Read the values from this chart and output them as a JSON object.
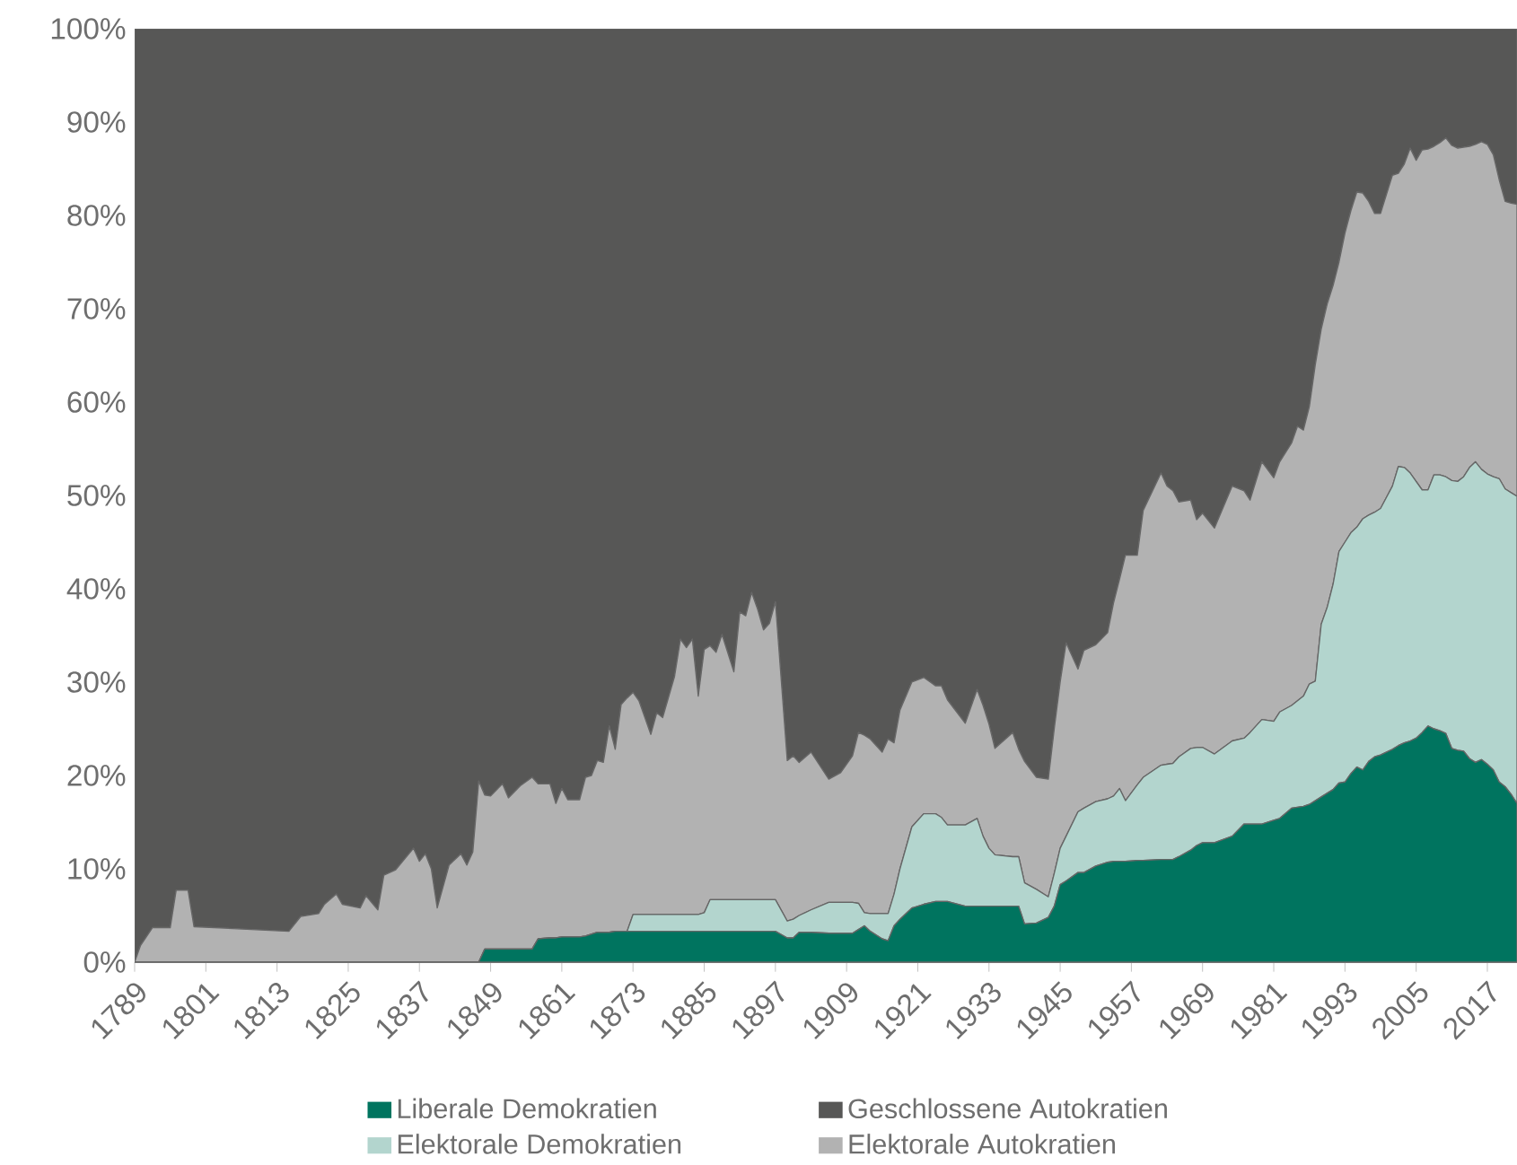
{
  "chart_data": {
    "type": "area",
    "stacked": true,
    "legend": "bottom",
    "marker": "none",
    "grid": false,
    "x": [
      1789,
      1790,
      1792,
      1795,
      1796,
      1798,
      1799,
      1815,
      1817,
      1820,
      1821,
      1823,
      1824,
      1827,
      1828,
      1830,
      1831,
      1833,
      1836,
      1837,
      1838,
      1839,
      1840,
      1842,
      1844,
      1845,
      1846,
      1847,
      1848,
      1849,
      1851,
      1852,
      1854,
      1856,
      1857,
      1859,
      1860,
      1861,
      1862,
      1864,
      1865,
      1866,
      1867,
      1868,
      1869,
      1870,
      1871,
      1872,
      1873,
      1874,
      1876,
      1877,
      1878,
      1880,
      1881,
      1882,
      1883,
      1884,
      1885,
      1886,
      1887,
      1888,
      1890,
      1891,
      1892,
      1893,
      1894,
      1895,
      1896,
      1897,
      1899,
      1900,
      1901,
      1903,
      1906,
      1908,
      1910,
      1911,
      1912,
      1913,
      1915,
      1916,
      1917,
      1918,
      1920,
      1922,
      1924,
      1925,
      1926,
      1929,
      1931,
      1932,
      1933,
      1934,
      1937,
      1938,
      1939,
      1941,
      1943,
      1944,
      1945,
      1946,
      1948,
      1949,
      1951,
      1953,
      1954,
      1955,
      1956,
      1958,
      1959,
      1962,
      1963,
      1964,
      1965,
      1967,
      1968,
      1969,
      1971,
      1974,
      1976,
      1977,
      1979,
      1981,
      1982,
      1984,
      1985,
      1986,
      1987,
      1988,
      1989,
      1990,
      1991,
      1992,
      1993,
      1994,
      1995,
      1996,
      1997,
      1998,
      1999,
      2001,
      2002,
      2003,
      2004,
      2005,
      2006,
      2007,
      2008,
      2009,
      2010,
      2011,
      2012,
      2013,
      2014,
      2015,
      2016,
      2017,
      2018,
      2019,
      2020,
      2021,
      2022
    ],
    "series": [
      {
        "name": "Liberale Demokratien",
        "color": "#00745f",
        "values": [
          0,
          0,
          0,
          0,
          0,
          0,
          0,
          0,
          0,
          0,
          0,
          0,
          0,
          0,
          0,
          0,
          0,
          0,
          0,
          0,
          0,
          0,
          0,
          0,
          0,
          0,
          0,
          0,
          1.4,
          1.4,
          1.4,
          1.4,
          1.4,
          1.4,
          2.5,
          2.6,
          2.6,
          2.7,
          2.7,
          2.7,
          2.8,
          3.0,
          3.2,
          3.2,
          3.2,
          3.3,
          3.3,
          3.3,
          3.3,
          3.3,
          3.3,
          3.3,
          3.3,
          3.3,
          3.3,
          3.3,
          3.3,
          3.3,
          3.3,
          3.3,
          3.3,
          3.3,
          3.3,
          3.3,
          3.3,
          3.3,
          3.3,
          3.3,
          3.3,
          3.3,
          2.6,
          2.6,
          3.2,
          3.2,
          3.1,
          3.1,
          3.1,
          3.5,
          3.9,
          3.3,
          2.5,
          2.3,
          3.9,
          4.6,
          5.8,
          6.2,
          6.5,
          6.5,
          6.5,
          6.0,
          6.0,
          6.0,
          6.0,
          6.0,
          6.0,
          6.0,
          4.1,
          4.2,
          4.8,
          6.0,
          8.3,
          8.7,
          9.6,
          9.6,
          10.3,
          10.7,
          10.8,
          10.8,
          10.8,
          10.9,
          10.9,
          11.0,
          11.0,
          11.0,
          11.3,
          12,
          12.5,
          12.8,
          12.8,
          13.5,
          14.8,
          14.8,
          14.8,
          15.2,
          15.4,
          16.5,
          16.6,
          16.7,
          16.9,
          17.3,
          17.7,
          18.1,
          18.5,
          19.2,
          19.3,
          20.2,
          20.9,
          20.6,
          21.5,
          22,
          22.2,
          22.8,
          23.2,
          23.5,
          23.7,
          24,
          24.6,
          25.3,
          25,
          24.8,
          24.5,
          22.9,
          22.7,
          22.6,
          21.8,
          21.4,
          21.7,
          21.2,
          20.6,
          19.3,
          18.8,
          18,
          17
        ]
      },
      {
        "name": "Elektorale Demokratien",
        "color": "#b3d5ce",
        "values": [
          0,
          0,
          0,
          0,
          0,
          0,
          0,
          0,
          0,
          0,
          0,
          0,
          0,
          0,
          0,
          0,
          0,
          0,
          0,
          0,
          0,
          0,
          0,
          0,
          0,
          0,
          0,
          0,
          0,
          0,
          0,
          0,
          0,
          0,
          0,
          0,
          0,
          0,
          0,
          0,
          0,
          0,
          0,
          0,
          0,
          0,
          0,
          0,
          1.8,
          1.8,
          1.8,
          1.8,
          1.8,
          1.8,
          1.8,
          1.8,
          1.8,
          1.8,
          2.0,
          3.4,
          3.4,
          3.4,
          3.4,
          3.4,
          3.4,
          3.4,
          3.4,
          3.4,
          3.4,
          3.4,
          1.8,
          2.0,
          1.8,
          2.4,
          3.3,
          3.3,
          3.3,
          2.8,
          1.4,
          1.9,
          2.7,
          2.9,
          3.4,
          5.4,
          8.7,
          9.7,
          9.4,
          9,
          8.2,
          8.7,
          9.4,
          7.5,
          6.2,
          5.5,
          5.3,
          5.3,
          4.4,
          3.6,
          2.2,
          3.5,
          3.9,
          4.8,
          6.5,
          6.9,
          6.9,
          6.8,
          7,
          7.8,
          6.5,
          8.1,
          8.9,
          10.1,
          10.2,
          10.3,
          10.7,
          10.9,
          10.5,
          10.2,
          9.5,
          10.2,
          9.2,
          9.8,
          11.2,
          10.6,
          11.4,
          11,
          11.4,
          11.8,
          12.9,
          12.8,
          18.5,
          19.9,
          22,
          24.8,
          25.7,
          25.8,
          25.7,
          26.9,
          26.4,
          26.2,
          26.4,
          28.2,
          29.9,
          29.5,
          28.7,
          27.5,
          26.0,
          25.3,
          27.2,
          27.4,
          27.5,
          28.7,
          28.8,
          29.4,
          31.2,
          32.2,
          31.1,
          31.1,
          31.4,
          32.5,
          31.9,
          32.3,
          32.9
        ]
      },
      {
        "name": "Elektorale Autokratien",
        "color": "#b2b2b2",
        "values": [
          0,
          1.8,
          3.7,
          3.7,
          7.7,
          7.7,
          3.8,
          3.3,
          4.9,
          5.2,
          6.2,
          7.3,
          6.2,
          5.8,
          7.1,
          5.6,
          9.3,
          9.9,
          12.2,
          10.8,
          11.6,
          10,
          5.8,
          10.4,
          11.6,
          10.4,
          11.8,
          19.4,
          16.5,
          16.4,
          17.7,
          16.2,
          17.5,
          18.4,
          16.6,
          16.5,
          14.4,
          15.9,
          14.7,
          14.7,
          17,
          17,
          18.4,
          18.2,
          22.1,
          19.5,
          24.3,
          25,
          23.8,
          22.9,
          19.3,
          21.6,
          21.1,
          25.5,
          29.5,
          28.6,
          29.5,
          23.4,
          28.2,
          27.2,
          26.5,
          28.4,
          24.4,
          30.8,
          30.4,
          32.9,
          31.1,
          28.9,
          29.6,
          31.9,
          17.2,
          17.5,
          16.4,
          16.9,
          13.2,
          13.9,
          15.7,
          18.3,
          19,
          18.7,
          17.3,
          18.7,
          16.2,
          17,
          15.5,
          14.6,
          13.7,
          14.1,
          13.4,
          10.9,
          13.8,
          14,
          13.3,
          11.4,
          13.3,
          11.5,
          13,
          12,
          12.6,
          15.5,
          17.8,
          20.7,
          15.3,
          16.9,
          16.8,
          17.8,
          20.7,
          22.4,
          26.3,
          24.6,
          28.6,
          31.3,
          29.8,
          29.2,
          27.3,
          26.6,
          24.4,
          25.1,
          24.2,
          27.3,
          26.5,
          24.9,
          27.6,
          26.1,
          26.8,
          28.1,
          29.4,
          28.5,
          29.7,
          33.9,
          31.6,
          32.5,
          32,
          31,
          33.1,
          34.5,
          35.9,
          34.9,
          33.6,
          32,
          31.6,
          33.3,
          31.4,
          32.5,
          34.8,
          34.4,
          36.4,
          36.5,
          35.2,
          35.6,
          36.3,
          35.9,
          35.7,
          35.3,
          34.4,
          34,
          35.1,
          35.3,
          34.5,
          32,
          30.8,
          31,
          31.3
        ]
      },
      {
        "name": "Geschlossene Autokratien",
        "color": "#575756",
        "values": [
          100,
          98.2,
          96.3,
          96.3,
          92.3,
          92.3,
          96.2,
          96.7,
          95.1,
          94.8,
          93.8,
          92.7,
          93.8,
          94.2,
          92.9,
          94.4,
          90.7,
          90.1,
          87.8,
          89.2,
          88.4,
          90,
          94.2,
          89.6,
          88.4,
          89.6,
          88.2,
          80.6,
          82.1,
          82.2,
          80.9,
          82.4,
          81.1,
          80.2,
          80.9,
          80.9,
          83,
          81.4,
          82.6,
          82.6,
          80.2,
          80,
          78.4,
          78.6,
          74.7,
          77.2,
          72.4,
          71.7,
          71.1,
          72,
          75.6,
          73.3,
          73.8,
          69.4,
          65.4,
          66.3,
          65.4,
          71.5,
          66.5,
          66.1,
          66.8,
          64.9,
          68.9,
          62.5,
          62.9,
          60.4,
          62.2,
          64.4,
          63.7,
          61.4,
          78.4,
          77.9,
          78.6,
          77.5,
          80.4,
          79.7,
          77.9,
          75.4,
          75.7,
          76.1,
          77.5,
          76.1,
          76.5,
          73,
          70,
          69.5,
          70.4,
          70.4,
          71.9,
          74.4,
          70.8,
          72.5,
          74.5,
          77.1,
          75.4,
          77.2,
          78.5,
          80.2,
          80.4,
          75,
          70,
          65.8,
          68.6,
          66.6,
          66,
          64.7,
          61.5,
          59,
          56.4,
          56.4,
          51.6,
          47.6,
          49,
          49.5,
          50.7,
          50.5,
          52.6,
          51.9,
          53.5,
          49,
          49.5,
          50.5,
          46.4,
          48.1,
          46.4,
          44.4,
          42.6,
          43,
          40.5,
          36,
          32.2,
          29.5,
          27.5,
          25,
          21.9,
          19.5,
          17.5,
          17.6,
          18.5,
          19.8,
          19.8,
          15.7,
          15.5,
          14.5,
          12.8,
          14.1,
          13.0,
          12.9,
          12.6,
          12.2,
          11.7,
          12.5,
          12.8,
          12.7,
          12.6,
          12.4,
          12.1,
          12.4,
          13.5,
          16.2,
          18.5,
          18.7,
          18.8
        ]
      }
    ],
    "xlim": [
      1789,
      2022
    ],
    "xticks": [
      1789,
      1801,
      1813,
      1825,
      1837,
      1849,
      1861,
      1873,
      1885,
      1897,
      1909,
      1921,
      1933,
      1945,
      1957,
      1969,
      1981,
      1993,
      2005,
      2017
    ],
    "ylim": [
      0,
      100
    ],
    "yticks": [
      {
        "value": 0,
        "label": "0%"
      },
      {
        "value": 10,
        "label": "10%"
      },
      {
        "value": 20,
        "label": "20%"
      },
      {
        "value": 30,
        "label": "30%"
      },
      {
        "value": 40,
        "label": "40%"
      },
      {
        "value": 50,
        "label": "50%"
      },
      {
        "value": 60,
        "label": "60%"
      },
      {
        "value": 70,
        "label": "70%"
      },
      {
        "value": 80,
        "label": "80%"
      },
      {
        "value": 90,
        "label": "90%"
      },
      {
        "value": 100,
        "label": "100%"
      }
    ]
  }
}
